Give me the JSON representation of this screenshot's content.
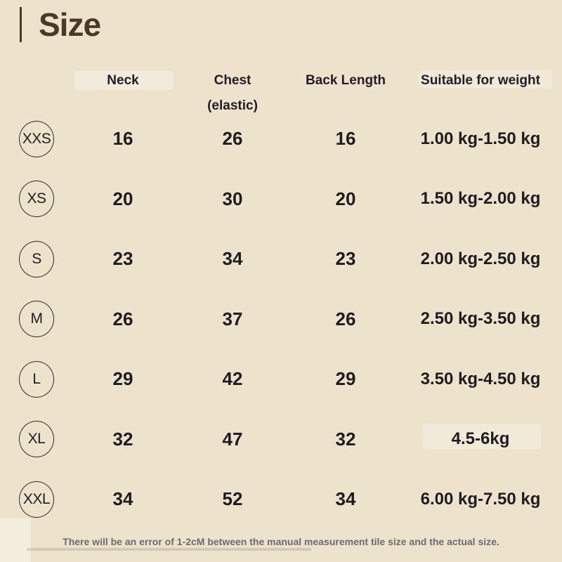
{
  "header": {
    "title": "Size"
  },
  "table": {
    "headers": {
      "size": "",
      "neck": "Neck",
      "chest_line1": "Chest",
      "chest_line2": "(elastic)",
      "back_length": "Back Length",
      "weight": "Suitable for weight"
    },
    "rows": [
      {
        "size": "XXS",
        "neck": "16",
        "chest": "26",
        "back_length": "16",
        "weight": "1.00 kg-1.50 kg"
      },
      {
        "size": "XS",
        "neck": "20",
        "chest": "30",
        "back_length": "20",
        "weight": "1.50 kg-2.00 kg"
      },
      {
        "size": "S",
        "neck": "23",
        "chest": "34",
        "back_length": "23",
        "weight": "2.00 kg-2.50 kg"
      },
      {
        "size": "M",
        "neck": "26",
        "chest": "37",
        "back_length": "26",
        "weight": "2.50 kg-3.50 kg"
      },
      {
        "size": "L",
        "neck": "29",
        "chest": "42",
        "back_length": "29",
        "weight": "3.50 kg-4.50 kg"
      },
      {
        "size": "XL",
        "neck": "32",
        "chest": "47",
        "back_length": "32",
        "weight": "4.5-6kg"
      },
      {
        "size": "XXL",
        "neck": "34",
        "chest": "52",
        "back_length": "34",
        "weight": "6.00 kg-7.50 kg"
      }
    ]
  },
  "footer": {
    "note": "There will be an error of 1-2cM between the manual measurement tile size and the actual size."
  },
  "colors": {
    "background": "#EDE3CD",
    "title_text": "#4B3928",
    "header_text": "#241C26",
    "cell_text": "#1E1C1E",
    "footer_text": "#6A6B6F",
    "circle_stroke": "#2E2B28"
  },
  "chart_data": {
    "type": "table",
    "title": "Size",
    "columns": [
      "Size",
      "Neck",
      "Chest (elastic)",
      "Back Length",
      "Suitable for weight"
    ],
    "rows": [
      [
        "XXS",
        16,
        26,
        16,
        "1.00 kg-1.50 kg"
      ],
      [
        "XS",
        20,
        30,
        20,
        "1.50 kg-2.00 kg"
      ],
      [
        "S",
        23,
        34,
        23,
        "2.00 kg-2.50 kg"
      ],
      [
        "M",
        26,
        37,
        26,
        "2.50 kg-3.50 kg"
      ],
      [
        "L",
        29,
        42,
        29,
        "3.50 kg-4.50 kg"
      ],
      [
        "XL",
        32,
        47,
        32,
        "4.5-6kg"
      ],
      [
        "XXL",
        34,
        52,
        34,
        "6.00 kg-7.50 kg"
      ]
    ],
    "note": "There will be an error of 1-2cM between the manual measurement tile size and the actual size."
  }
}
